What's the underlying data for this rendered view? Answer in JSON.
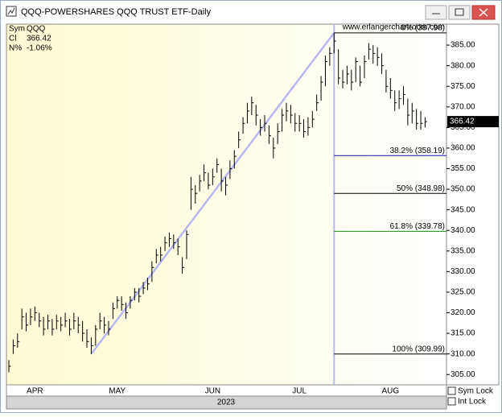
{
  "window": {
    "title": "QQQ-POWERSHARES QQQ TRUST ETF-Daily"
  },
  "info": [
    {
      "label": "Sym",
      "value": "QQQ"
    },
    {
      "label": "Cl",
      "value": "366.42"
    },
    {
      "label": "N%",
      "value": "-1.06%"
    }
  ],
  "watermark": "www.erlangerchartroom.com",
  "controls": [
    "Sym Lock",
    "Int Lock"
  ],
  "chart_data": {
    "type": "ohlc",
    "year": "2023",
    "categories": [
      null,
      null,
      null,
      null,
      null,
      null,
      "APR",
      null,
      null,
      null,
      null,
      null,
      null,
      null,
      null,
      null,
      null,
      null,
      null,
      null,
      null,
      null,
      null,
      null,
      null,
      "MAY",
      null,
      null,
      null,
      null,
      null,
      null,
      null,
      null,
      null,
      null,
      null,
      null,
      null,
      null,
      null,
      null,
      null,
      null,
      null,
      null,
      null,
      "JUN",
      null,
      null,
      null,
      null,
      null,
      null,
      null,
      null,
      null,
      null,
      null,
      null,
      null,
      null,
      null,
      null,
      null,
      null,
      null,
      "JUL",
      null,
      null,
      null,
      null,
      null,
      null,
      null,
      null,
      null,
      null,
      null,
      null,
      null,
      null,
      null,
      null,
      null,
      null,
      null,
      null,
      "AUG",
      null,
      null,
      null,
      null,
      null,
      null,
      null,
      null
    ],
    "high": [
      308.5,
      313.5,
      315,
      321,
      320,
      321,
      321.5,
      320,
      319,
      319.5,
      318.5,
      319.5,
      319,
      320,
      318.5,
      320,
      319,
      318,
      316,
      314,
      317,
      320,
      319,
      318,
      322.5,
      324,
      324,
      322.5,
      324,
      326,
      326,
      327.5,
      328.5,
      332.5,
      335.5,
      336,
      338.5,
      339.5,
      339,
      338,
      333.5,
      340,
      353,
      351,
      353.5,
      356,
      354,
      355,
      357.5,
      355,
      353,
      357,
      359.5,
      364,
      367.5,
      371,
      372.5,
      370.5,
      367,
      368,
      365.5,
      362.5,
      366,
      369.5,
      371,
      370.5,
      368.5,
      368,
      367,
      367.5,
      369,
      373,
      377.5,
      382.5,
      384.5,
      387.98,
      384,
      379,
      380,
      379,
      382,
      380,
      382.5,
      385.5,
      385,
      384.5,
      383,
      379,
      377,
      374,
      374,
      375,
      372,
      371,
      369.5,
      369,
      367.5
    ],
    "low": [
      305.5,
      310,
      311.5,
      316,
      315.5,
      317,
      318,
      316.5,
      314.5,
      316,
      314.5,
      316,
      315.5,
      316.5,
      314.5,
      316,
      315,
      313,
      311.5,
      309.99,
      312,
      316,
      315,
      314.5,
      318.5,
      321,
      320.5,
      318.5,
      321,
      323,
      322.5,
      324.5,
      325.5,
      327.5,
      332,
      332.5,
      335,
      336,
      335.5,
      334,
      329.5,
      333,
      345,
      346.5,
      349.5,
      352,
      350,
      351,
      354,
      349.5,
      348.5,
      352.5,
      355,
      360,
      363.5,
      366,
      368,
      365.5,
      363,
      364,
      361,
      357.5,
      361,
      364,
      366.5,
      366,
      364,
      364,
      362.5,
      363,
      365,
      369,
      371.5,
      375,
      380,
      383,
      375.5,
      374.5,
      375.5,
      374,
      376,
      375,
      377,
      381.5,
      380.5,
      380,
      378,
      373.5,
      372,
      369,
      369.5,
      370.5,
      365.5,
      366,
      364.5,
      364.5,
      365
    ],
    "close": [
      307,
      312,
      313,
      319,
      317,
      319,
      320,
      318,
      316,
      318,
      316,
      318,
      317,
      318,
      316,
      318,
      317,
      315,
      313,
      312,
      316,
      318,
      317,
      316,
      321,
      323,
      322,
      320,
      323,
      325,
      324,
      326,
      327,
      331,
      334,
      334,
      337,
      338,
      337,
      336,
      331,
      339,
      350,
      349,
      352,
      354,
      351,
      353,
      356,
      352,
      351,
      355,
      358,
      362,
      366,
      369,
      371,
      368,
      365,
      366,
      363,
      360,
      364,
      368,
      369,
      368,
      366,
      366,
      364,
      365,
      367,
      371,
      376,
      381,
      383,
      386,
      377,
      376,
      378,
      376,
      381,
      376,
      381,
      384,
      383,
      382,
      380,
      375,
      374,
      371,
      372,
      373,
      368,
      369,
      366,
      366,
      366.42
    ],
    "color": "#000000",
    "trendline_color": "#b8b8f0",
    "ylim": [
      302.5,
      390.1
    ],
    "yticks": [
      {
        "value": 305,
        "label": "305.00"
      },
      {
        "value": 310,
        "label": "310.00"
      },
      {
        "value": 315,
        "label": "315.00"
      },
      {
        "value": 320,
        "label": "320.00"
      },
      {
        "value": 325,
        "label": "325.00"
      },
      {
        "value": 330,
        "label": "330.00"
      },
      {
        "value": 335,
        "label": "335.00"
      },
      {
        "value": 340,
        "label": "340.00"
      },
      {
        "value": 345,
        "label": "345.00"
      },
      {
        "value": 350,
        "label": "350.00"
      },
      {
        "value": 355,
        "label": "355.00"
      },
      {
        "value": 360,
        "label": "360.00"
      },
      {
        "value": 365,
        "label": "365.00"
      },
      {
        "value": 370,
        "label": "370.00"
      },
      {
        "value": 375,
        "label": "375.00"
      },
      {
        "value": 380,
        "label": "380.00"
      },
      {
        "value": 385,
        "label": "385.00"
      }
    ],
    "fib_levels": [
      {
        "value": 387.98,
        "label": "0% (387.98)",
        "color": "#000000"
      },
      {
        "value": 358.19,
        "label": "38.2% (358.19)",
        "color": "#1a1aa0"
      },
      {
        "value": 348.98,
        "label": "50% (348.98)",
        "color": "#000000"
      },
      {
        "value": 339.78,
        "label": "61.8% (339.78)",
        "color": "#1a8a1a"
      },
      {
        "value": 309.99,
        "label": "100% (309.99)",
        "color": "#000000"
      }
    ]
  }
}
